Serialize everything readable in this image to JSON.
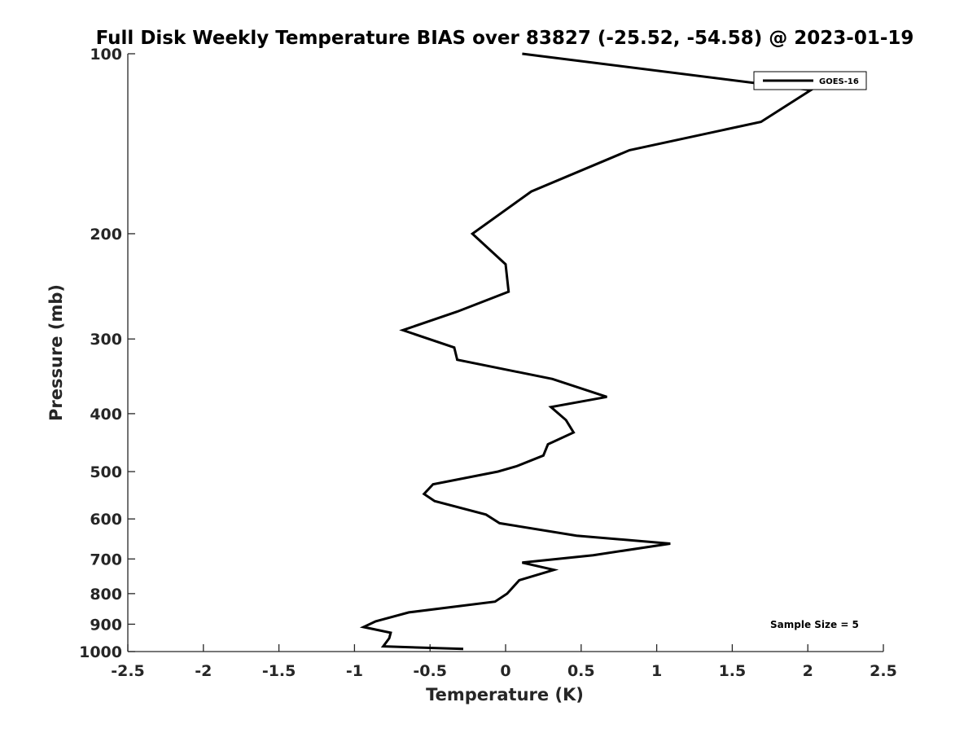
{
  "chart_data": {
    "type": "line",
    "title": "Full Disk Weekly Temperature BIAS over 83827 (-25.52, -54.58) @ 2023-01-19",
    "xlabel": "Temperature (K)",
    "ylabel": "Pressure (mb)",
    "xlim": [
      -2.5,
      2.5
    ],
    "ylim": [
      100,
      1000
    ],
    "y_scale": "log",
    "y_reversed": true,
    "grid": false,
    "legend_position": "top-right",
    "x_ticks": [
      -2.5,
      -2,
      -1.5,
      -1,
      -0.5,
      0,
      0.5,
      1,
      1.5,
      2,
      2.5
    ],
    "x_tick_labels": [
      "-2.5",
      "-2",
      "-1.5",
      "-1",
      "-0.5",
      "0",
      "0.5",
      "1",
      "1.5",
      "2",
      "2.5"
    ],
    "y_ticks": [
      100,
      200,
      300,
      400,
      500,
      600,
      700,
      800,
      900,
      1000
    ],
    "y_tick_labels": [
      "100",
      "200",
      "300",
      "400",
      "500",
      "600",
      "700",
      "800",
      "900",
      "1000"
    ],
    "annotation": "Sample Size = 5",
    "series": [
      {
        "name": "GOES-16",
        "color": "#000000",
        "points": [
          [
            0.11,
            100
          ],
          [
            2.02,
            115
          ],
          [
            1.69,
            130
          ],
          [
            0.82,
            145
          ],
          [
            0.17,
            170
          ],
          [
            -0.22,
            200
          ],
          [
            0.0,
            225
          ],
          [
            0.02,
            250
          ],
          [
            -0.32,
            270
          ],
          [
            -0.68,
            290
          ],
          [
            -0.34,
            310
          ],
          [
            -0.32,
            325
          ],
          [
            0.31,
            350
          ],
          [
            0.67,
            375
          ],
          [
            0.3,
            390
          ],
          [
            0.4,
            410
          ],
          [
            0.45,
            430
          ],
          [
            0.28,
            450
          ],
          [
            0.25,
            470
          ],
          [
            0.07,
            490
          ],
          [
            -0.05,
            500
          ],
          [
            -0.48,
            525
          ],
          [
            -0.54,
            545
          ],
          [
            -0.47,
            560
          ],
          [
            -0.13,
            590
          ],
          [
            -0.04,
            610
          ],
          [
            0.47,
            640
          ],
          [
            1.09,
            660
          ],
          [
            0.58,
            690
          ],
          [
            0.11,
            710
          ],
          [
            0.32,
            730
          ],
          [
            0.09,
            760
          ],
          [
            0.01,
            800
          ],
          [
            -0.07,
            825
          ],
          [
            -0.64,
            860
          ],
          [
            -0.86,
            890
          ],
          [
            -0.94,
            910
          ],
          [
            -0.76,
            930
          ],
          [
            -0.77,
            950
          ],
          [
            -0.81,
            980
          ],
          [
            -0.28,
            990
          ]
        ]
      }
    ]
  }
}
